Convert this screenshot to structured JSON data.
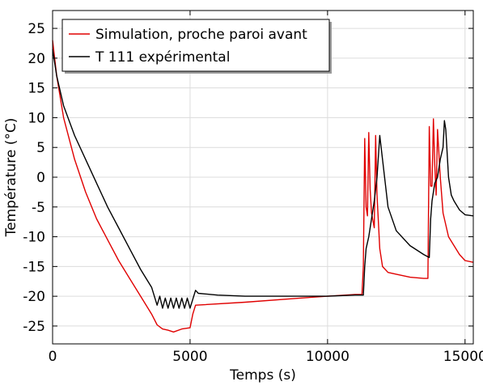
{
  "chart_data": {
    "type": "line",
    "xlabel": "Temps (s)",
    "ylabel": "Température (°C)",
    "xlim": [
      0,
      15300
    ],
    "ylim": [
      -28,
      28
    ],
    "grid": true,
    "legend_placement": "top-left",
    "x_ticks": [
      0,
      5000,
      10000,
      15000
    ],
    "x_tick_labels": [
      "0",
      "5000",
      "10000",
      "15000"
    ],
    "y_ticks": [
      25,
      20,
      15,
      10,
      5,
      0,
      -5,
      -10,
      -15,
      -20,
      -25
    ],
    "y_tick_labels": [
      "25",
      "20",
      "15",
      "10",
      "5",
      "0",
      "-5",
      "-10",
      "-15",
      "-20",
      "-25"
    ],
    "series": [
      {
        "name": "Simulation, proche paroi avant",
        "color": "#e00000",
        "x": [
          0,
          150,
          400,
          800,
          1200,
          1600,
          2000,
          2400,
          2800,
          3200,
          3600,
          3800,
          4000,
          4200,
          4400,
          4700,
          5000,
          5100,
          5200,
          7000,
          9000,
          10000,
          11000,
          11250,
          11300,
          11350,
          11400,
          11450,
          11500,
          11550,
          11600,
          11700,
          11750,
          11800,
          11900,
          12000,
          12200,
          12500,
          13000,
          13500,
          13650,
          13700,
          13750,
          13800,
          13850,
          13900,
          13950,
          14000,
          14100,
          14200,
          14300,
          14400,
          14600,
          14800,
          15000,
          15300
        ],
        "y": [
          23,
          17,
          10,
          3,
          -2.5,
          -7,
          -10.5,
          -14,
          -17,
          -20,
          -23,
          -24.8,
          -25.5,
          -25.7,
          -26,
          -25.5,
          -25.3,
          -23,
          -21.5,
          -21,
          -20.3,
          -20,
          -19.7,
          -19.7,
          -15,
          6.5,
          -5,
          -6.5,
          7.5,
          -2,
          -6,
          -8.5,
          7,
          -3,
          -12,
          -15,
          -16,
          -16.3,
          -16.8,
          -17,
          -17,
          8.5,
          -1.5,
          -1.5,
          9.8,
          2,
          -3,
          8,
          0,
          -6,
          -8,
          -10,
          -11.5,
          -13,
          -14,
          -14.3
        ]
      },
      {
        "name": "T 111 expérimental",
        "color": "#000000",
        "x": [
          0,
          150,
          400,
          800,
          1200,
          1600,
          2000,
          2400,
          2800,
          3200,
          3600,
          3800,
          3900,
          4000,
          4100,
          4200,
          4300,
          4400,
          4500,
          4600,
          4700,
          4800,
          4900,
          5000,
          5100,
          5200,
          5300,
          6000,
          7000,
          8000,
          9000,
          10000,
          11000,
          11300,
          11350,
          11400,
          11500,
          11600,
          11700,
          11800,
          11900,
          12000,
          12200,
          12500,
          13000,
          13500,
          13700,
          13750,
          13800,
          13900,
          14000,
          14100,
          14200,
          14250,
          14300,
          14400,
          14500,
          14600,
          14800,
          15000,
          15300
        ],
        "y": [
          21.5,
          17,
          12,
          7,
          3,
          -1,
          -5,
          -8.5,
          -12,
          -15.5,
          -18.5,
          -21.5,
          -20,
          -22,
          -20.3,
          -22,
          -20.3,
          -22,
          -20.3,
          -22,
          -20.3,
          -22,
          -20.3,
          -22,
          -20.5,
          -19,
          -19.5,
          -19.8,
          -20,
          -20,
          -20,
          -20,
          -19.8,
          -19.8,
          -15,
          -12,
          -10,
          -7,
          -4,
          0,
          7,
          3,
          -5,
          -9,
          -11.5,
          -13,
          -13.5,
          -7,
          -4,
          -1,
          0,
          3,
          5,
          9.5,
          8,
          0,
          -3,
          -4,
          -5.5,
          -6.3,
          -6.5
        ]
      }
    ]
  }
}
